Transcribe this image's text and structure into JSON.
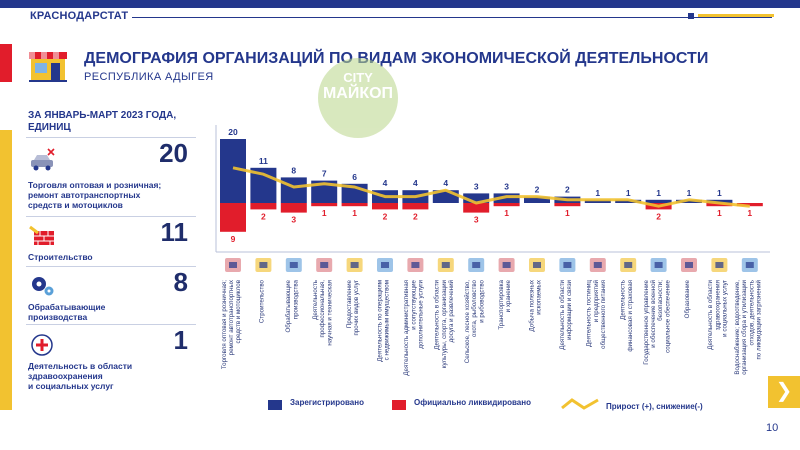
{
  "header": {
    "region": "КРАСНОДАРСТАТ",
    "title": "ДЕМОГРАФИЯ ОРГАНИЗАЦИЙ ПО ВИДАМ ЭКОНОМИЧЕСКОЙ ДЕЯТЕЛЬНОСТИ",
    "subtitle": "РЕСПУБЛИКА АДЫГЕЯ",
    "watermark_line1": "CITY",
    "watermark_line2": "МАЙКОП"
  },
  "sidebar": {
    "period": [
      "ЗА ЯНВАРЬ-МАРТ 2023 ГОДА,",
      "ЕДИНИЦ"
    ],
    "cards": [
      {
        "value": "20",
        "label": [
          "Торговля оптовая и розничная;",
          "ремонт автотранспортных",
          "средств и мотоциклов"
        ],
        "icon": "car-repair-icon"
      },
      {
        "value": "11",
        "label": [
          "Строительство"
        ],
        "icon": "bricks-icon"
      },
      {
        "value": "8",
        "label": [
          "Обрабатывающие",
          "производства"
        ],
        "icon": "gears-icon"
      },
      {
        "value": "1",
        "label": [
          "Деятельность в области",
          "здравоохранения",
          "и социальных услуг"
        ],
        "icon": "medical-icon"
      }
    ]
  },
  "chart_data": {
    "type": "bar",
    "categories": [
      [
        "Торговля оптовая и розничная;",
        "ремонт автотранспортных",
        "средств и мотоциклов"
      ],
      [
        "Строительство"
      ],
      [
        "Обрабатывающие",
        "производства"
      ],
      [
        "Деятельность",
        "профессиональная,",
        "научная и техническая"
      ],
      [
        "Предоставление",
        "прочих видов услуг"
      ],
      [
        "Деятельность по операциям",
        "с недвижимым имуществом"
      ],
      [
        "Деятельность административная",
        "и сопутствующие",
        "дополнительные услуги"
      ],
      [
        "Деятельность в области",
        "культуры, спорта, организации",
        "досуга и развлечений"
      ],
      [
        "Сельское, лесное хозяйство,",
        "охота, рыболовство",
        "и рыбоводство"
      ],
      [
        "Транспортировка",
        "и хранение"
      ],
      [
        "Добыча полезных",
        "ископаемых"
      ],
      [
        "Деятельность в области",
        "информации и связи"
      ],
      [
        "Деятельность гостиниц",
        "и предприятий",
        "общественного питания"
      ],
      [
        "Деятельность",
        "финансовая и страховая"
      ],
      [
        "Государственное управление",
        "и обеспечение военной",
        "безопасности;",
        "социальное обеспечение"
      ],
      [
        "Образование"
      ],
      [
        "Деятельность в области",
        "здравоохранения",
        "и социальных услуг"
      ],
      [
        "Водоснабжение; водоотведение,",
        "организация сбора и утилизации",
        "отходов, деятельность",
        "по ликвидации загрязнений"
      ]
    ],
    "icons": [
      "car-repair-icon",
      "bricks-icon",
      "tools-icon",
      "microscope-icon",
      "service-person-icon",
      "house-icon",
      "office-building-icon",
      "palette-icon",
      "tractor-tools-icon",
      "truck-icon",
      "mining-icon",
      "computer-icon",
      "dish-icon",
      "money-icon",
      "tank-icon",
      "graduation-cap-icon",
      "medical-icon",
      "water-tap-icon"
    ],
    "series": [
      {
        "name": "Зарегистрировано",
        "values": [
          20,
          11,
          8,
          7,
          6,
          4,
          4,
          4,
          3,
          3,
          2,
          2,
          1,
          1,
          1,
          1,
          1,
          0
        ],
        "color": "#24378c"
      },
      {
        "name": "Официально ликвидировано",
        "values": [
          9,
          2,
          3,
          1,
          1,
          2,
          2,
          0,
          3,
          1,
          0,
          1,
          0,
          0,
          2,
          0,
          1,
          1
        ],
        "color": "#e11d2b"
      },
      {
        "name": "Прирост (+), снижение(-)",
        "values": [
          11,
          9,
          5,
          6,
          5,
          2,
          2,
          4,
          0,
          2,
          2,
          1,
          1,
          1,
          -1,
          1,
          0,
          -1
        ],
        "color": "#f2c230"
      }
    ],
    "legend_position": "bottom",
    "grid": false
  },
  "page": {
    "number": "10",
    "next_symbol": "❯"
  }
}
